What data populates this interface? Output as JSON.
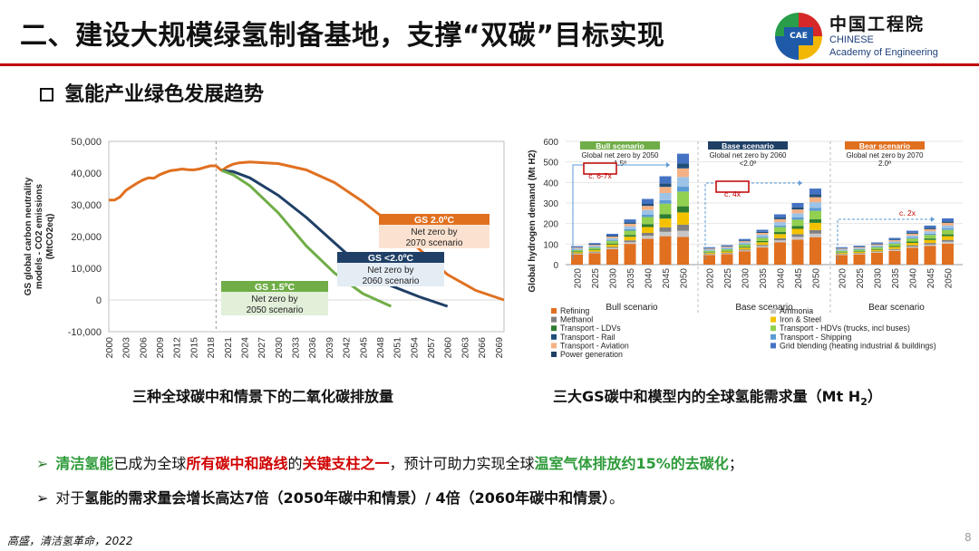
{
  "slide": {
    "title": "二、建设大规模绿氢制备基地，支撑“双碳”目标实现",
    "subtitle": "氢能产业绿色发展趋势",
    "page_number": "8",
    "footer": "高盛，清洁氢革命，2022",
    "logo": {
      "mark": "CAE",
      "cn": "中国工程院",
      "en_line1": "CHINESE",
      "en_line2": "Academy of Engineering"
    },
    "caption_left": "三种全球碳中和情景下的二氧化碳排放量",
    "caption_right": "三大GS碳中和模型内的全球氢能需求量（Mt H",
    "caption_right_sub": "2",
    "caption_right_end": "）",
    "bullets": [
      {
        "p1": "清洁氢能",
        "p2": "已成为全球",
        "p3": "所有碳中和路线",
        "p4": "的",
        "p5": "关键支柱之一",
        "p6": "，预计可助力实现全球",
        "p7": "温室气体排放约15%的去碳化",
        "p8": "；"
      },
      {
        "p1": "对于",
        "p2": "氢能的需求量会增长高达7倍（2050年碳中和情景）/ 4倍（2060年碳中和情景）",
        "p3": "。"
      }
    ]
  },
  "chart_data": [
    {
      "type": "line",
      "ylabel": "GS  global carbon neutrality models - CO2 emissions (MtCO2eq)",
      "ylim": [
        -10000,
        50000
      ],
      "yticks": [
        "50,000",
        "40,000",
        "30,000",
        "20,000",
        "10,000",
        "0",
        "-10,000"
      ],
      "xticks": [
        "2000",
        "2003",
        "2006",
        "2009",
        "2012",
        "2015",
        "2018",
        "2021",
        "2024",
        "2027",
        "2030",
        "2033",
        "2036",
        "2039",
        "2042",
        "2045",
        "2048",
        "2051",
        "2054",
        "2057",
        "2060",
        "2063",
        "2066",
        "2069"
      ],
      "divider_year": 2019,
      "series": [
        {
          "name": "history",
          "color": "#e07020",
          "x": [
            2000,
            2001,
            2002,
            2003,
            2004,
            2005,
            2006,
            2007,
            2008,
            2009,
            2010,
            2011,
            2012,
            2013,
            2014,
            2015,
            2016,
            2017,
            2018,
            2019,
            2020
          ],
          "y": [
            31500,
            31500,
            32500,
            34500,
            35700,
            36800,
            37800,
            38500,
            38400,
            39500,
            40200,
            40800,
            41000,
            41300,
            41100,
            41000,
            41300,
            41800,
            42300,
            42300,
            40800
          ]
        },
        {
          "name": "GS 2.0ºC",
          "color": "#e07020",
          "x": [
            2020,
            2021,
            2022,
            2023,
            2025,
            2030,
            2035,
            2040,
            2045,
            2050,
            2055,
            2060,
            2065,
            2070
          ],
          "y": [
            40800,
            42000,
            42800,
            43200,
            43500,
            43000,
            41000,
            37000,
            31000,
            24000,
            16000,
            8000,
            3000,
            0
          ]
        },
        {
          "name": "GS <2.0ºC",
          "color": "#1f3f66",
          "x": [
            2020,
            2022,
            2025,
            2030,
            2035,
            2040,
            2045,
            2050,
            2055,
            2060
          ],
          "y": [
            40800,
            40500,
            38500,
            33000,
            26000,
            18000,
            10000,
            4500,
            1000,
            -2000
          ]
        },
        {
          "name": "GS 1.5ºC",
          "color": "#70ad47",
          "x": [
            2020,
            2022,
            2025,
            2030,
            2035,
            2040,
            2045,
            2050
          ],
          "y": [
            40800,
            39500,
            36000,
            27500,
            17000,
            8500,
            2000,
            -2000
          ]
        }
      ],
      "annotations": [
        {
          "title": "GS 2.0ºC",
          "text": "Net zero by 2070 scenario"
        },
        {
          "title": "GS <2.0ºC",
          "text": "Net zero by 2060 scenario"
        },
        {
          "title": "GS 1.5ºC",
          "text": "Net zero by 2050 scenario"
        }
      ]
    },
    {
      "type": "bar",
      "stacked": true,
      "ylabel": "Global hydrogen demand (Mt H2)",
      "ylim": [
        0,
        600
      ],
      "yticks": [
        "600",
        "500",
        "400",
        "300",
        "200",
        "100",
        "0"
      ],
      "categories": [
        "2020",
        "2025",
        "2030",
        "2035",
        "2040",
        "2045",
        "2050"
      ],
      "groups": [
        {
          "name": "Bull scenario",
          "banner": "Bull scenario",
          "banner_text": "Global net zero by 2050 - 1.5º",
          "banner_color": "#70ad47",
          "multiplier": "c. 6-7x",
          "totals": [
            90,
            105,
            150,
            220,
            320,
            430,
            540
          ]
        },
        {
          "name": "Base scenario",
          "banner": "Base scenario",
          "banner_text": "Global net zero by 2060 - <2.0º",
          "banner_color": "#1f3f66",
          "multiplier": "c. 4x",
          "totals": [
            85,
            95,
            125,
            170,
            245,
            300,
            370
          ]
        },
        {
          "name": "Bear scenario",
          "banner": "Bear scenario",
          "banner_text": "Global net zero by 2070 - 2.0º",
          "banner_color": "#e07020",
          "multiplier": "c. 2x",
          "totals": [
            85,
            92,
            108,
            130,
            165,
            190,
            225
          ]
        }
      ],
      "series_colors": [
        "#e07020",
        "#c7c7c7",
        "#808080",
        "#f2c200",
        "#2e7d32",
        "#92d050",
        "#5b9bd5",
        "#9dc3e6",
        "#f4b183",
        "#1f4e79",
        "#4472c4"
      ],
      "legend": [
        {
          "label": "Refining",
          "color": "#e07020"
        },
        {
          "label": "Ammonia",
          "color": "#c7c7c7"
        },
        {
          "label": "Methanol",
          "color": "#808080"
        },
        {
          "label": "Iron & Steel",
          "color": "#f2c200"
        },
        {
          "label": "Transport - LDVs",
          "color": "#2e7d32"
        },
        {
          "label": "Transport - HDVs (trucks, incl buses)",
          "color": "#92d050"
        },
        {
          "label": "Transport - Rail",
          "color": "#1f4e79"
        },
        {
          "label": "Transport - Shipping",
          "color": "#5b9bd5"
        },
        {
          "label": "Transport - Aviation",
          "color": "#f4b183"
        },
        {
          "label": "Grid blending (heating industrial & buildings)",
          "color": "#4472c4"
        },
        {
          "label": "Power generation",
          "color": "#1f3f66"
        }
      ]
    }
  ]
}
